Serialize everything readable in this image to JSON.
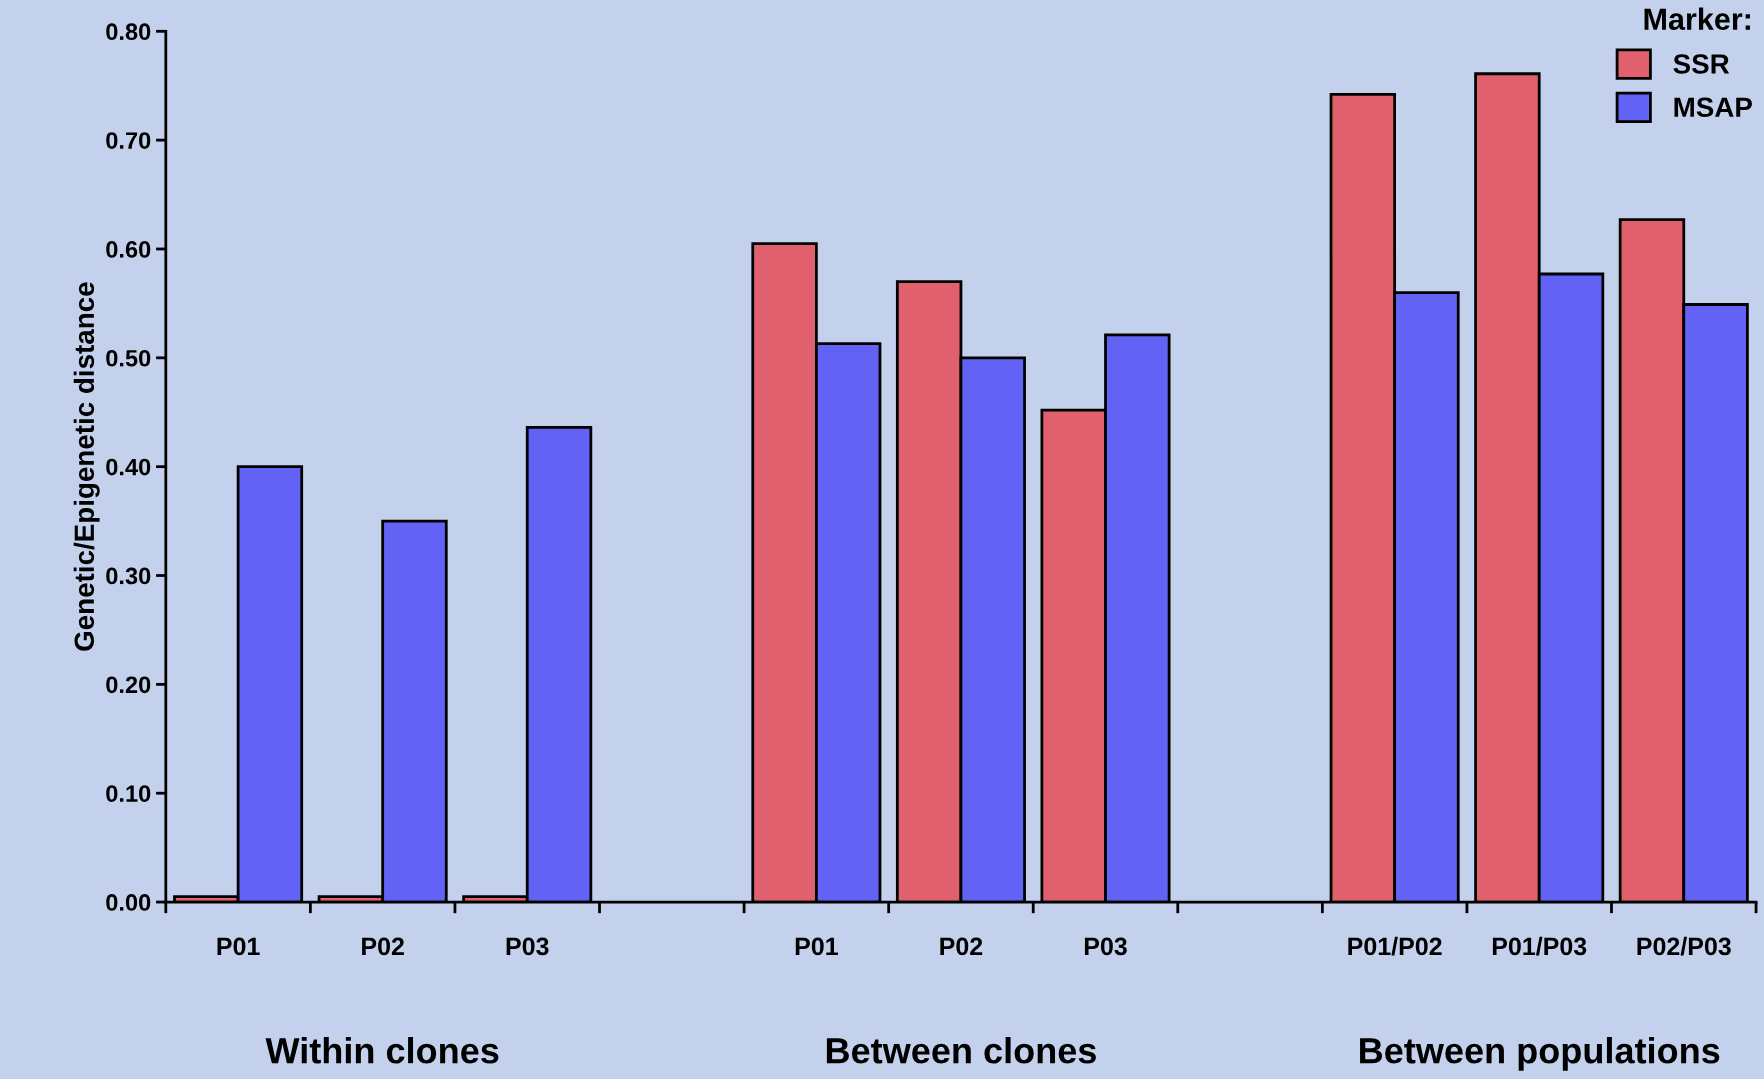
{
  "chart_data": {
    "type": "bar",
    "ylabel": "Genetic/Epigenetic distance",
    "legend_title": "Marker:",
    "legend": "top right",
    "grid": false,
    "categories": [
      "P01",
      "P02",
      "P03",
      null,
      "P01",
      "P02",
      "P03",
      null,
      "P01/P02",
      "P01/P03",
      "P02/P03"
    ],
    "series": [
      {
        "name": "SSR",
        "color": "#e0606e",
        "values": [
          0.005,
          0.005,
          0.005,
          null,
          0.605,
          0.57,
          0.452,
          null,
          0.742,
          0.761,
          0.627
        ]
      },
      {
        "name": "MSAP",
        "color": "#6262f5",
        "values": [
          0.4,
          0.35,
          0.436,
          null,
          0.513,
          0.5,
          0.521,
          null,
          0.56,
          0.577,
          0.549
        ]
      }
    ],
    "ylim": [
      0,
      0.8
    ],
    "yticks": [
      {
        "value": 0,
        "label": "0.00"
      },
      {
        "value": 0.1,
        "label": "0.10"
      },
      {
        "value": 0.2,
        "label": "0.20"
      },
      {
        "value": 0.3,
        "label": "0.30"
      },
      {
        "value": 0.4,
        "label": "0.40"
      },
      {
        "value": 0.5,
        "label": "0.50"
      },
      {
        "value": 0.6,
        "label": "0.60"
      },
      {
        "value": 0.7,
        "label": "0.70"
      },
      {
        "value": 0.8,
        "label": "0.80"
      }
    ],
    "annotations": [
      "Within clones",
      "Between clones",
      "Between populations"
    ]
  }
}
